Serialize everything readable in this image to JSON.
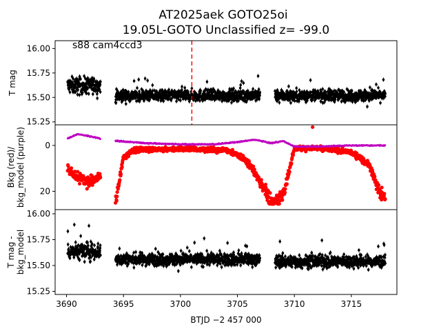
{
  "figure": {
    "title_line1": "AT2025aek  GOTO25oi",
    "title_line2": "19.05L-GOTO Unclassified z= -99.0",
    "annotation": "s88 cam4ccd3",
    "xlabel": "BTJD −2 457 000"
  },
  "chart_data": [
    {
      "type": "scatter",
      "panel": "top",
      "ylabel": "T mag",
      "xlim": [
        3689.0,
        3719.0
      ],
      "ylim": [
        16.08,
        15.22
      ],
      "inverted_y": true,
      "yticks": [
        "15.25",
        "15.50",
        "15.75",
        "16.00"
      ],
      "ytick_values": [
        15.25,
        15.5,
        15.75,
        16.0
      ],
      "marker_color": "#000000",
      "vline": {
        "x": 3701.0,
        "color": "#ff0000",
        "style": "dashed"
      },
      "segments": [
        {
          "x_start": 3690.1,
          "x_end": 3693.0,
          "center": 15.62,
          "spread": 0.14
        },
        {
          "x_start": 3694.3,
          "x_end": 3707.0,
          "center": 15.52,
          "spread": 0.1
        },
        {
          "x_start": 3708.3,
          "x_end": 3718.0,
          "center": 15.52,
          "spread": 0.1
        }
      ]
    },
    {
      "type": "scatter",
      "panel": "middle",
      "ylabel": "Bkg (red)/\nbkg_model (purple)",
      "xlim": [
        3689.0,
        3719.0
      ],
      "ylim": [
        -9.0,
        28.0
      ],
      "yticks": [
        "0",
        "20"
      ],
      "ytick_values": [
        0,
        20
      ],
      "series": [
        {
          "name": "Bkg",
          "color": "#ff0000",
          "description_points": [
            [
              3690.1,
              10
            ],
            [
              3691.0,
              14
            ],
            [
              3692.0,
              16
            ],
            [
              3693.0,
              13
            ],
            [
              3694.3,
              25
            ],
            [
              3695.0,
              5
            ],
            [
              3696.0,
              2
            ],
            [
              3700.0,
              1.5
            ],
            [
              3704.0,
              2
            ],
            [
              3705.0,
              4
            ],
            [
              3706.0,
              8
            ],
            [
              3707.0,
              16
            ],
            [
              3708.0,
              25
            ],
            [
              3709.0,
              22
            ],
            [
              3710.0,
              1.5
            ],
            [
              3712.0,
              1
            ],
            [
              3715.0,
              3
            ],
            [
              3716.5,
              8
            ],
            [
              3717.5,
              20
            ],
            [
              3718.0,
              24
            ]
          ]
        },
        {
          "name": "bkg_model",
          "color": "#bf00bf",
          "description_points": [
            [
              3690.1,
              -3
            ],
            [
              3691.0,
              -5
            ],
            [
              3692.0,
              -4
            ],
            [
              3693.0,
              -3
            ],
            [
              3694.3,
              -2
            ],
            [
              3697.0,
              -1
            ],
            [
              3700.0,
              -0.5
            ],
            [
              3703.0,
              -0.5
            ],
            [
              3705.0,
              -1.5
            ],
            [
              3706.5,
              -2.5
            ],
            [
              3708.0,
              -1
            ],
            [
              3709.0,
              -2
            ],
            [
              3710.0,
              0.5
            ],
            [
              3712.0,
              0.5
            ],
            [
              3715.0,
              0
            ],
            [
              3718.0,
              0
            ]
          ]
        }
      ]
    },
    {
      "type": "scatter",
      "panel": "bottom",
      "ylabel": "T mag -\nbkg_model",
      "xlim": [
        3689.0,
        3719.0
      ],
      "ylim": [
        16.04,
        15.22
      ],
      "inverted_y": true,
      "yticks": [
        "15.25",
        "15.50",
        "15.75",
        "16.00"
      ],
      "ytick_values": [
        15.25,
        15.5,
        15.75,
        16.0
      ],
      "marker_color": "#000000",
      "xticks": [
        "3690",
        "3695",
        "3700",
        "3705",
        "3710",
        "3715"
      ],
      "xtick_values": [
        3690,
        3695,
        3700,
        3705,
        3710,
        3715
      ],
      "segments": [
        {
          "x_start": 3690.1,
          "x_end": 3693.0,
          "center": 15.64,
          "spread": 0.14
        },
        {
          "x_start": 3694.3,
          "x_end": 3707.0,
          "center": 15.56,
          "spread": 0.1
        },
        {
          "x_start": 3708.3,
          "x_end": 3718.0,
          "center": 15.54,
          "spread": 0.1
        }
      ]
    }
  ]
}
